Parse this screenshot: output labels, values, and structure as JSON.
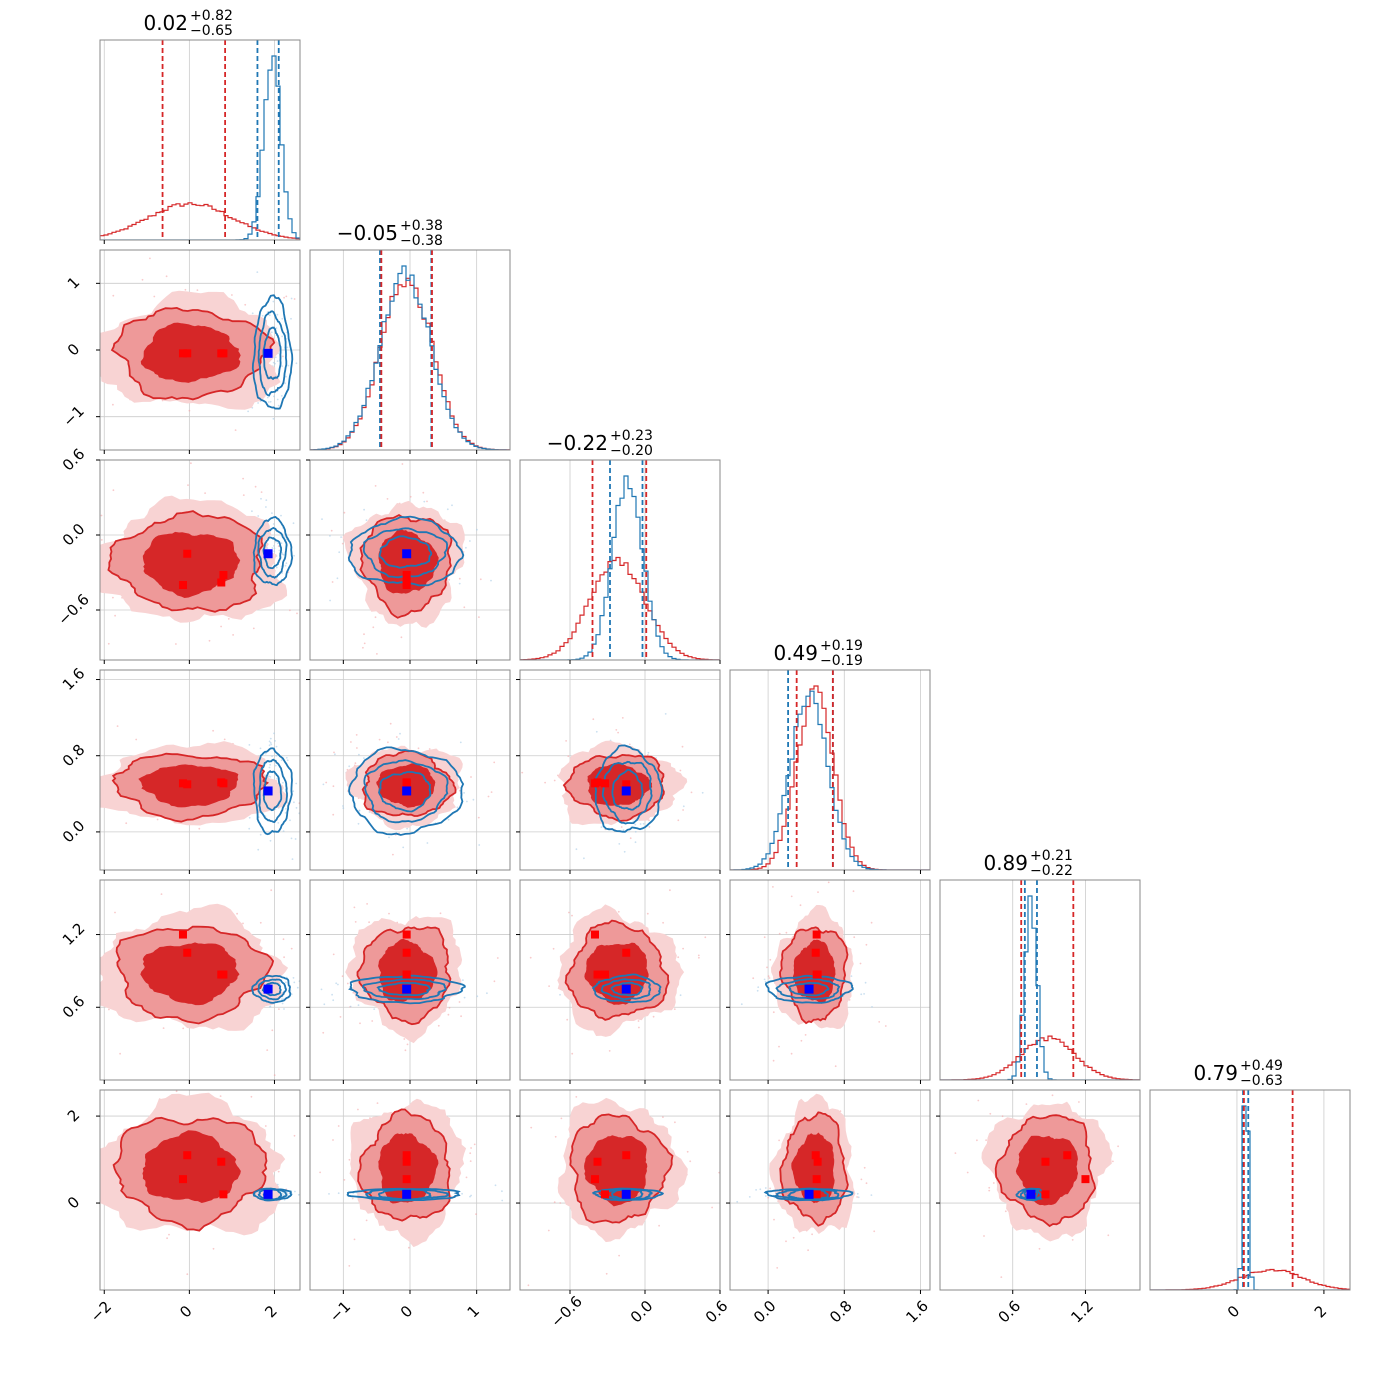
{
  "chart_data": {
    "type": "scatter",
    "subtype": "corner-plot",
    "parameters": [
      {
        "index": 0,
        "median": "0.02",
        "err_plus": "+0.82",
        "err_minus": "−0.65",
        "range": [
          -2.1,
          2.6
        ],
        "ticks": [
          -2,
          0,
          2
        ],
        "tick_labels": [
          "−2",
          "0",
          "2"
        ]
      },
      {
        "index": 1,
        "median": "−0.05",
        "err_plus": "+0.38",
        "err_minus": "−0.38",
        "range": [
          -1.5,
          1.5
        ],
        "ticks": [
          -1,
          0,
          1
        ],
        "tick_labels": [
          "−1",
          "0",
          "1"
        ]
      },
      {
        "index": 2,
        "median": "−0.22",
        "err_plus": "+0.23",
        "err_minus": "−0.20",
        "range": [
          -1.0,
          0.6
        ],
        "ticks": [
          -0.6,
          0.0,
          0.6
        ],
        "tick_labels": [
          "−0.6",
          "0.0",
          "0.6"
        ]
      },
      {
        "index": 3,
        "median": "0.49",
        "err_plus": "+0.19",
        "err_minus": "−0.19",
        "range": [
          -0.4,
          1.7
        ],
        "ticks": [
          0.0,
          0.8,
          1.6
        ],
        "tick_labels": [
          "0.0",
          "0.8",
          "1.6"
        ]
      },
      {
        "index": 4,
        "median": "0.89",
        "err_plus": "+0.21",
        "err_minus": "−0.22",
        "range": [
          0.0,
          1.65
        ],
        "ticks": [
          0.6,
          1.2
        ],
        "tick_labels": [
          "0.6",
          "1.2"
        ]
      },
      {
        "index": 5,
        "median": "0.79",
        "err_plus": "+0.49",
        "err_minus": "−0.63",
        "range": [
          -2.0,
          2.6
        ],
        "ticks": [
          0,
          2
        ],
        "tick_labels": [
          "0",
          "2"
        ]
      }
    ],
    "series": [
      {
        "color": "#d62728",
        "centers": [
          0.02,
          -0.05,
          -0.22,
          0.49,
          0.89,
          0.79
        ],
        "sigmas": [
          1.0,
          0.38,
          0.22,
          0.19,
          0.22,
          0.7
        ],
        "quantiles_16_84": [
          [
            -0.63,
            0.84
          ],
          [
            -0.43,
            0.33
          ],
          [
            -0.42,
            0.01
          ],
          [
            0.3,
            0.68
          ],
          [
            0.67,
            1.1
          ],
          [
            0.16,
            1.28
          ]
        ]
      },
      {
        "color": "#1f77b4",
        "centers": [
          1.95,
          -0.07,
          -0.14,
          0.43,
          0.75,
          0.2
        ],
        "sigmas": [
          0.2,
          0.38,
          0.12,
          0.2,
          0.05,
          0.06
        ],
        "quantiles_16_84": [
          [
            1.6,
            2.1
          ],
          [
            -0.45,
            0.32
          ],
          [
            -0.28,
            -0.02
          ],
          [
            0.21,
            0.68
          ],
          [
            0.7,
            0.8
          ],
          [
            0.14,
            0.26
          ]
        ]
      }
    ],
    "truth_markers": {
      "blue": {
        "color": "#0000ff",
        "values": [
          1.85,
          -0.05,
          -0.15,
          0.43,
          0.75,
          0.2
        ]
      },
      "red": [
        {
          "color": "#ff0000",
          "values": [
            -0.05,
            -0.05,
            -0.15,
            0.5,
            1.05,
            1.1
          ]
        },
        {
          "color": "#ff0000",
          "values": [
            0.8,
            -0.05,
            -0.32,
            0.51,
            0.87,
            0.2
          ]
        },
        {
          "color": "#ff0000",
          "values": [
            -0.15,
            -0.05,
            -0.4,
            0.51,
            1.2,
            0.55
          ]
        },
        {
          "color": "#ff0000",
          "values": [
            0.75,
            -0.05,
            -0.38,
            0.52,
            0.87,
            0.95
          ]
        }
      ]
    },
    "grid": true,
    "xlabel": "",
    "ylabel": ""
  }
}
